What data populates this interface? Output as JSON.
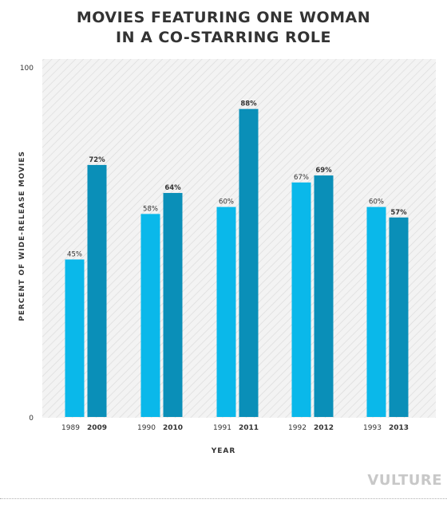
{
  "title_lines": [
    "MOVIES FEATURING ONE WOMAN",
    "IN A CO-STARRING ROLE"
  ],
  "ylabel": "PERCENT OF WIDE-RELEASE MOVIES",
  "xlabel": "YEAR",
  "brand": "VULTURE",
  "colors": {
    "early": "#0ab8ea",
    "late": "#0a8fb8",
    "plot_background": "#f3f3f3",
    "hatch": "#dcdcdc",
    "text": "#333333"
  },
  "chart_data": {
    "type": "bar",
    "title": "MOVIES FEATURING ONE WOMAN IN A CO-STARRING ROLE",
    "xlabel": "YEAR",
    "ylabel": "PERCENT OF WIDE-RELEASE MOVIES",
    "ylim": [
      0,
      100
    ],
    "yticks": [
      "0",
      "100"
    ],
    "grid": false,
    "groups": [
      {
        "bars": [
          {
            "year": "1989",
            "value": 45,
            "label": "45%"
          },
          {
            "year": "2009",
            "value": 72,
            "label": "72%"
          }
        ]
      },
      {
        "bars": [
          {
            "year": "1990",
            "value": 58,
            "label": "58%"
          },
          {
            "year": "2010",
            "value": 64,
            "label": "64%"
          }
        ]
      },
      {
        "bars": [
          {
            "year": "1991",
            "value": 60,
            "label": "60%"
          },
          {
            "year": "2011",
            "value": 88,
            "label": "88%"
          }
        ]
      },
      {
        "bars": [
          {
            "year": "1992",
            "value": 67,
            "label": "67%"
          },
          {
            "year": "2012",
            "value": 69,
            "label": "69%"
          }
        ]
      },
      {
        "bars": [
          {
            "year": "1993",
            "value": 60,
            "label": "60%"
          },
          {
            "year": "2013",
            "value": 57,
            "label": "57%"
          }
        ]
      }
    ]
  }
}
